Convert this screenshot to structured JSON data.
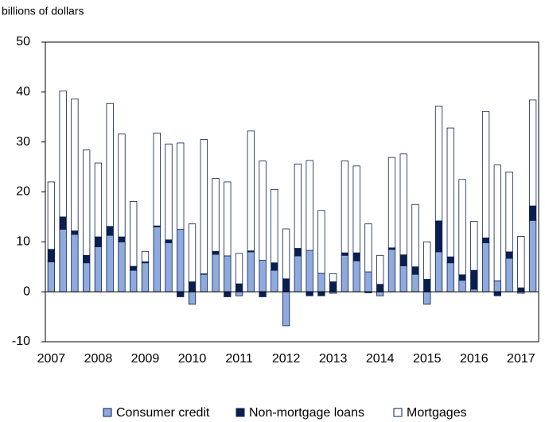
{
  "chart_data": {
    "type": "stacked_bar",
    "y_label": "billions of dollars",
    "categories": [
      "2007",
      null,
      null,
      null,
      "2008",
      null,
      null,
      null,
      "2009",
      null,
      null,
      null,
      "2010",
      null,
      null,
      null,
      "2011",
      null,
      null,
      null,
      "2012",
      null,
      null,
      null,
      "2013",
      null,
      null,
      null,
      "2014",
      null,
      null,
      null,
      "2015",
      null,
      null,
      null,
      "2016",
      null,
      null,
      null,
      "2017",
      null
    ],
    "series": [
      {
        "name": "Consumer credit",
        "color": "#8faadc",
        "values": [
          6,
          12.5,
          11.5,
          5.8,
          9,
          11.3,
          10,
          4.3,
          5.8,
          13,
          9.8,
          12.5,
          -2.5,
          3.5,
          7.5,
          7.2,
          -0.8,
          8,
          6.3,
          4.3,
          -6.8,
          7.2,
          8.3,
          3.7,
          -0.3,
          7.3,
          6.2,
          4,
          -0.8,
          8.5,
          5.2,
          3.5,
          -2.5,
          8,
          5.8,
          2.3,
          0.5,
          9.8,
          2.2,
          6.7,
          -0.3,
          14.3
        ]
      },
      {
        "name": "Non-mortgage loans",
        "color": "#0b1f4f",
        "values": [
          2.5,
          2.5,
          0.7,
          1.5,
          2,
          1.8,
          1,
          0.8,
          0.2,
          0.2,
          0.6,
          -1,
          2,
          0.1,
          0.6,
          -1,
          1.6,
          0.2,
          -1,
          1.5,
          2.6,
          1.5,
          -0.8,
          -0.8,
          2,
          0.5,
          1.6,
          -0.2,
          1.5,
          0.3,
          2.2,
          1.5,
          2.5,
          6.2,
          1.2,
          1.1,
          3.8,
          1,
          -0.8,
          1.3,
          0.8,
          2.9
        ]
      },
      {
        "name": "Mortgages",
        "color": "#ffffff",
        "values": [
          13.5,
          25.2,
          26.4,
          21.1,
          14.8,
          24.6,
          20.6,
          13,
          2.1,
          18.6,
          19.2,
          17.3,
          11.6,
          26.9,
          14.6,
          14.8,
          6.1,
          24,
          19.9,
          14.7,
          10,
          16.9,
          18,
          12.6,
          1.6,
          18.4,
          17.4,
          9.6,
          5.8,
          18.1,
          20.2,
          12.5,
          7.5,
          23,
          25.8,
          19.1,
          9.8,
          25.3,
          23.2,
          16,
          10.3,
          21.2
        ]
      }
    ],
    "ylim": [
      -10,
      50
    ],
    "yticks": [
      -10,
      0,
      10,
      20,
      30,
      40,
      50
    ],
    "grid": false,
    "legend": "bottom"
  }
}
